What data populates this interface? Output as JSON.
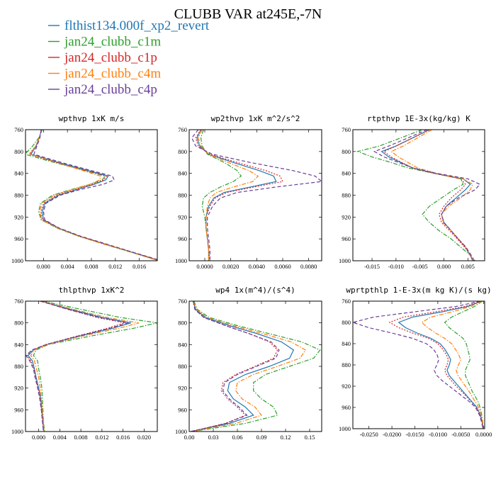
{
  "title": "CLUBB VAR at245E,-7N",
  "legend": [
    {
      "label": "flthist134.000f_xp2_revert",
      "color": "#1f77b4",
      "dash": "solid"
    },
    {
      "label": "jan24_clubb_c1m",
      "color": "#2ca02c",
      "dash": "dashdot"
    },
    {
      "label": "jan24_clubb_c1p",
      "color": "#d62728",
      "dash": "dot"
    },
    {
      "label": "jan24_clubb_c4m",
      "color": "#ff7f0e",
      "dash": "dashdot"
    },
    {
      "label": "jan24_clubb_c4p",
      "color": "#6a3d9a",
      "dash": "dash"
    }
  ],
  "chart_data": [
    {
      "type": "line",
      "title": "wpthvp  1xK m/s",
      "xlim": [
        -0.003,
        0.019
      ],
      "ylim": [
        760,
        1000
      ],
      "xticks": [
        "0.000",
        "0.004",
        "0.008",
        "0.012",
        "0.016"
      ],
      "xtick_values": [
        0.0,
        0.004,
        0.008,
        0.012,
        0.016
      ],
      "yticks": [
        760,
        800,
        840,
        880,
        920,
        960,
        1000
      ],
      "y": [
        760,
        775,
        790,
        805,
        820,
        835,
        845,
        852,
        860,
        870,
        880,
        895,
        910,
        925,
        940,
        955,
        970,
        985,
        1000
      ],
      "series": [
        {
          "values": [
            -0.0003,
            -0.0007,
            -0.0012,
            -0.0021,
            0.0025,
            0.0075,
            0.0108,
            0.0104,
            0.0085,
            0.0055,
            0.0025,
            0.0002,
            -0.0002,
            0.0,
            0.0025,
            0.006,
            0.0105,
            0.015,
            0.0195
          ]
        },
        {
          "values": [
            -0.0002,
            -0.0008,
            -0.0018,
            -0.0031,
            0.0018,
            0.007,
            0.0103,
            0.0098,
            0.0078,
            0.0045,
            0.0015,
            -0.0005,
            -0.0008,
            -0.0004,
            0.0022,
            0.0058,
            0.0102,
            0.0148,
            0.0192
          ]
        },
        {
          "values": [
            -0.0003,
            -0.0007,
            -0.0013,
            -0.0024,
            0.0022,
            0.0072,
            0.0105,
            0.0101,
            0.0082,
            0.0052,
            0.0022,
            0.0,
            -0.0004,
            -0.0002,
            0.0024,
            0.006,
            0.0104,
            0.0149,
            0.0194
          ]
        },
        {
          "values": [
            -0.0003,
            -0.0007,
            -0.0013,
            -0.0023,
            0.0022,
            0.0066,
            0.0095,
            0.0094,
            0.0078,
            0.0048,
            0.0018,
            -0.0003,
            -0.0006,
            -0.0003,
            0.0023,
            0.0059,
            0.0103,
            0.0149,
            0.0193
          ]
        },
        {
          "values": [
            -0.0004,
            -0.0006,
            -0.0011,
            -0.0016,
            0.003,
            0.008,
            0.0115,
            0.0118,
            0.01,
            0.006,
            0.0028,
            0.0004,
            0.0,
            0.0002,
            0.0026,
            0.0062,
            0.0107,
            0.0151,
            0.0197
          ]
        }
      ]
    },
    {
      "type": "line",
      "title": "wp2thvp  1xK m^2/s^2",
      "xlim": [
        -0.0012,
        0.009
      ],
      "ylim": [
        760,
        1000
      ],
      "xticks": [
        "0.0000",
        "0.0020",
        "0.0040",
        "0.0060",
        "0.0080"
      ],
      "xtick_values": [
        0.0,
        0.002,
        0.004,
        0.006,
        0.008
      ],
      "yticks": [
        760,
        800,
        840,
        880,
        920,
        960,
        1000
      ],
      "y": [
        760,
        775,
        790,
        805,
        820,
        835,
        845,
        855,
        865,
        875,
        885,
        900,
        920,
        940,
        960,
        980,
        1000
      ],
      "series": [
        {
          "values": [
            -0.0003,
            -0.0006,
            -0.0004,
            0.0003,
            0.0022,
            0.0042,
            0.0053,
            0.0055,
            0.0035,
            0.0015,
            0.0007,
            0.0003,
            0.0001,
            0.0001,
            0.0002,
            0.0003,
            0.0003
          ]
        },
        {
          "values": [
            -0.0001,
            -0.0003,
            -0.0002,
            0.0002,
            0.0015,
            0.0025,
            0.0028,
            0.0022,
            0.0012,
            0.0004,
            -0.0001,
            -0.0002,
            0.0,
            0.0001,
            0.0002,
            0.0003,
            0.0003
          ]
        },
        {
          "values": [
            -0.0003,
            -0.0007,
            -0.0005,
            0.0004,
            0.0025,
            0.0047,
            0.0058,
            0.006,
            0.0038,
            0.0017,
            0.0008,
            0.0004,
            0.0001,
            0.0001,
            0.0002,
            0.0003,
            0.0004
          ]
        },
        {
          "values": [
            -0.0002,
            -0.0005,
            -0.0003,
            0.0003,
            0.0018,
            0.0034,
            0.0041,
            0.0037,
            0.0022,
            0.0009,
            0.0004,
            0.0002,
            0.0001,
            0.0001,
            0.0002,
            0.0003,
            0.0003
          ]
        },
        {
          "values": [
            -0.0005,
            -0.001,
            -0.0007,
            0.0006,
            0.0035,
            0.0068,
            0.0085,
            0.009,
            0.0055,
            0.0025,
            0.0012,
            0.0006,
            0.0002,
            0.0002,
            0.0003,
            0.0004,
            0.0004
          ]
        }
      ]
    },
    {
      "type": "line",
      "title": "rtpthvp  1E-3x(kg/kg) K",
      "xlim": [
        -0.019,
        0.0085
      ],
      "ylim": [
        760,
        1000
      ],
      "xticks": [
        "-0.015",
        "-0.010",
        "-0.005",
        "0.000",
        "0.005"
      ],
      "xtick_values": [
        -0.015,
        -0.01,
        -0.005,
        0.0,
        0.005
      ],
      "yticks": [
        760,
        800,
        840,
        880,
        920,
        960,
        1000
      ],
      "y": [
        760,
        775,
        790,
        800,
        810,
        820,
        830,
        840,
        850,
        860,
        870,
        885,
        900,
        915,
        930,
        945,
        960,
        975,
        990,
        1000
      ],
      "series": [
        {
          "values": [
            -0.003,
            -0.0065,
            -0.01,
            -0.013,
            -0.0115,
            -0.009,
            -0.0065,
            -0.002,
            0.004,
            0.0055,
            0.0045,
            0.0025,
            0.0005,
            -0.0005,
            0.0,
            0.0015,
            0.003,
            0.0045,
            0.0055,
            0.006
          ]
        },
        {
          "values": [
            -0.0045,
            -0.009,
            -0.0135,
            -0.018,
            -0.015,
            -0.011,
            -0.0075,
            -0.002,
            0.0035,
            0.004,
            0.002,
            -0.0005,
            -0.003,
            -0.0045,
            -0.003,
            -0.001,
            0.0015,
            0.0035,
            0.0055,
            0.0065
          ]
        },
        {
          "values": [
            -0.003,
            -0.0065,
            -0.01,
            -0.0125,
            -0.011,
            -0.0088,
            -0.0065,
            -0.002,
            0.0035,
            0.0045,
            0.0035,
            0.0015,
            0.0,
            -0.001,
            -0.0005,
            0.0012,
            0.0028,
            0.0043,
            0.0055,
            0.006
          ]
        },
        {
          "values": [
            -0.0025,
            -0.0055,
            -0.0085,
            -0.011,
            -0.0095,
            -0.0075,
            -0.0055,
            -0.0015,
            0.004,
            0.006,
            0.0055,
            0.0035,
            0.001,
            -0.0005,
            -0.0002,
            0.0015,
            0.003,
            0.0045,
            0.0056,
            0.0062
          ]
        },
        {
          "values": [
            -0.0035,
            -0.0075,
            -0.0115,
            -0.0145,
            -0.0125,
            -0.0095,
            -0.0065,
            -0.0015,
            0.005,
            0.0075,
            0.0065,
            0.003,
            0.0005,
            -0.0005,
            0.0,
            0.0015,
            0.003,
            0.0046,
            0.0057,
            0.0063
          ]
        }
      ]
    },
    {
      "type": "line",
      "title": "thlpthvp  1xK^2",
      "xlim": [
        -0.0025,
        0.0225
      ],
      "ylim": [
        760,
        1000
      ],
      "xticks": [
        "0.000",
        "0.004",
        "0.008",
        "0.012",
        "0.016",
        "0.020"
      ],
      "xtick_values": [
        0.0,
        0.004,
        0.008,
        0.012,
        0.016,
        0.02
      ],
      "yticks": [
        760,
        800,
        840,
        880,
        920,
        960,
        1000
      ],
      "y": [
        760,
        775,
        790,
        800,
        810,
        825,
        840,
        850,
        860,
        870,
        885,
        900,
        920,
        940,
        960,
        980,
        1000
      ],
      "series": [
        {
          "values": [
            0.0005,
            0.006,
            0.012,
            0.0175,
            0.014,
            0.0075,
            0.0015,
            -0.001,
            -0.002,
            -0.0012,
            -0.0008,
            -0.0005,
            0.0,
            0.0004,
            0.0006,
            0.0008,
            0.001
          ]
        },
        {
          "values": [
            0.0008,
            0.008,
            0.0155,
            0.0225,
            0.018,
            0.0095,
            0.0018,
            -0.0005,
            -0.001,
            -0.0002,
            0.0,
            0.0003,
            0.0006,
            0.0007,
            0.0008,
            0.0009,
            0.0011
          ]
        },
        {
          "values": [
            0.0004,
            0.0055,
            0.011,
            0.0163,
            0.013,
            0.007,
            0.0013,
            -0.0012,
            -0.0022,
            -0.0015,
            -0.0009,
            -0.0006,
            -0.0001,
            0.0003,
            0.0005,
            0.0007,
            0.0009
          ]
        },
        {
          "values": [
            0.0006,
            0.0065,
            0.013,
            0.019,
            0.0152,
            0.008,
            0.0016,
            -0.0008,
            -0.0015,
            -0.0008,
            -0.0004,
            0.0,
            0.0003,
            0.0005,
            0.0007,
            0.0009,
            0.001
          ]
        },
        {
          "values": [
            0.0003,
            0.0055,
            0.0115,
            0.017,
            0.0135,
            0.0072,
            0.0014,
            -0.0013,
            -0.0024,
            -0.0017,
            -0.001,
            -0.0007,
            -0.0002,
            0.0002,
            0.0005,
            0.0007,
            0.0009
          ]
        }
      ]
    },
    {
      "type": "line",
      "title": "wp4  1x(m^4)/(s^4)",
      "xlim": [
        0.0,
        0.165
      ],
      "ylim": [
        760,
        1000
      ],
      "xticks": [
        "0.00",
        "0.03",
        "0.06",
        "0.09",
        "0.12",
        "0.15"
      ],
      "xtick_values": [
        0.0,
        0.03,
        0.06,
        0.09,
        0.12,
        0.15
      ],
      "yticks": [
        760,
        800,
        840,
        880,
        920,
        960,
        1000
      ],
      "y": [
        760,
        775,
        790,
        805,
        820,
        835,
        850,
        865,
        880,
        895,
        910,
        925,
        940,
        955,
        970,
        985,
        1000
      ],
      "series": [
        {
          "values": [
            0.005,
            0.008,
            0.02,
            0.05,
            0.085,
            0.115,
            0.13,
            0.125,
            0.1,
            0.07,
            0.05,
            0.048,
            0.055,
            0.07,
            0.08,
            0.05,
            0.002
          ]
        },
        {
          "values": [
            0.006,
            0.01,
            0.025,
            0.06,
            0.1,
            0.14,
            0.163,
            0.155,
            0.125,
            0.095,
            0.08,
            0.08,
            0.09,
            0.105,
            0.11,
            0.07,
            0.003
          ]
        },
        {
          "values": [
            0.005,
            0.007,
            0.018,
            0.045,
            0.075,
            0.1,
            0.11,
            0.105,
            0.082,
            0.058,
            0.042,
            0.04,
            0.048,
            0.06,
            0.07,
            0.045,
            0.002
          ]
        },
        {
          "values": [
            0.005,
            0.009,
            0.022,
            0.055,
            0.092,
            0.127,
            0.145,
            0.138,
            0.11,
            0.08,
            0.06,
            0.058,
            0.066,
            0.082,
            0.09,
            0.058,
            0.002
          ]
        },
        {
          "values": [
            0.005,
            0.007,
            0.018,
            0.045,
            0.075,
            0.102,
            0.112,
            0.108,
            0.084,
            0.06,
            0.044,
            0.042,
            0.05,
            0.062,
            0.072,
            0.046,
            0.002
          ]
        }
      ]
    },
    {
      "type": "line",
      "title": "wprtpthlp  1-E-3x(m kg K)/(s kg)",
      "xlim": [
        -0.0285,
        0.0002
      ],
      "ylim": [
        760,
        1000
      ],
      "xticks": [
        "-0.0250",
        "-0.0200",
        "-0.0150",
        "-0.0100",
        "-0.0050",
        "0.0000"
      ],
      "xtick_values": [
        -0.025,
        -0.02,
        -0.015,
        -0.01,
        -0.005,
        0.0
      ],
      "yticks": [
        760,
        800,
        840,
        880,
        920,
        960,
        1000
      ],
      "y": [
        760,
        770,
        780,
        790,
        800,
        810,
        820,
        830,
        840,
        850,
        860,
        870,
        880,
        890,
        900,
        910,
        920,
        930,
        940,
        950,
        960,
        975,
        990,
        1000
      ],
      "series": [
        {
          "values": [
            -0.0005,
            -0.0035,
            -0.009,
            -0.0155,
            -0.0185,
            -0.017,
            -0.0145,
            -0.0115,
            -0.0095,
            -0.0085,
            -0.0078,
            -0.0072,
            -0.0075,
            -0.008,
            -0.0075,
            -0.0065,
            -0.0055,
            -0.0045,
            -0.0035,
            -0.0025,
            -0.0015,
            -0.0007,
            -0.0003,
            -0.0002
          ]
        },
        {
          "values": [
            -0.0003,
            -0.002,
            -0.0045,
            -0.007,
            -0.0085,
            -0.0075,
            -0.006,
            -0.0045,
            -0.0038,
            -0.0035,
            -0.0032,
            -0.003,
            -0.0035,
            -0.004,
            -0.004,
            -0.0035,
            -0.003,
            -0.0025,
            -0.0018,
            -0.0012,
            -0.0008,
            -0.0004,
            -0.0002,
            -0.0001
          ]
        },
        {
          "values": [
            -0.0006,
            -0.004,
            -0.0105,
            -0.0175,
            -0.0205,
            -0.0185,
            -0.0155,
            -0.012,
            -0.01,
            -0.009,
            -0.0082,
            -0.0077,
            -0.008,
            -0.0085,
            -0.008,
            -0.007,
            -0.006,
            -0.0048,
            -0.0037,
            -0.0026,
            -0.0016,
            -0.0008,
            -0.0003,
            -0.0002
          ]
        },
        {
          "values": [
            -0.0004,
            -0.0028,
            -0.0068,
            -0.0115,
            -0.0135,
            -0.0122,
            -0.0105,
            -0.0085,
            -0.007,
            -0.0062,
            -0.0055,
            -0.005,
            -0.0055,
            -0.006,
            -0.0056,
            -0.0048,
            -0.004,
            -0.0032,
            -0.0025,
            -0.0018,
            -0.0011,
            -0.0005,
            -0.0002,
            -0.0001
          ]
        },
        {
          "values": [
            -0.0008,
            -0.006,
            -0.015,
            -0.024,
            -0.0285,
            -0.025,
            -0.02,
            -0.0155,
            -0.0125,
            -0.011,
            -0.0102,
            -0.0098,
            -0.0102,
            -0.0108,
            -0.0102,
            -0.009,
            -0.0075,
            -0.006,
            -0.0045,
            -0.003,
            -0.0018,
            -0.0009,
            -0.0004,
            -0.0002
          ]
        }
      ]
    }
  ]
}
